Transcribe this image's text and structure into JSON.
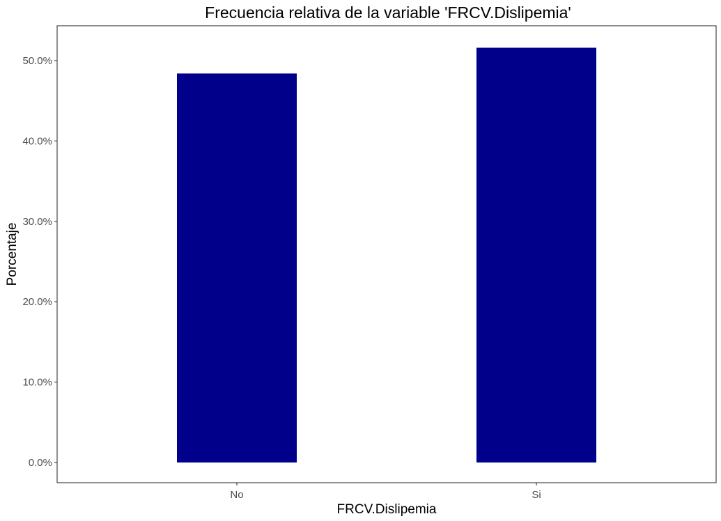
{
  "chart_data": {
    "type": "bar",
    "title": "Frecuencia relativa de la variable 'FRCV.Dislipemia'",
    "xlabel": "FRCV.Dislipemia",
    "ylabel": "Porcentaje",
    "categories": [
      "No",
      "Si"
    ],
    "values": [
      48.4,
      51.6
    ],
    "ylim": [
      0,
      52
    ],
    "yticks": [
      0,
      10,
      20,
      30,
      40,
      50
    ],
    "ytick_labels": [
      "0.0%",
      "10.0%",
      "20.0%",
      "30.0%",
      "40.0%",
      "50.0%"
    ],
    "bar_color": "#00008B",
    "grid": false,
    "legend": "none"
  }
}
